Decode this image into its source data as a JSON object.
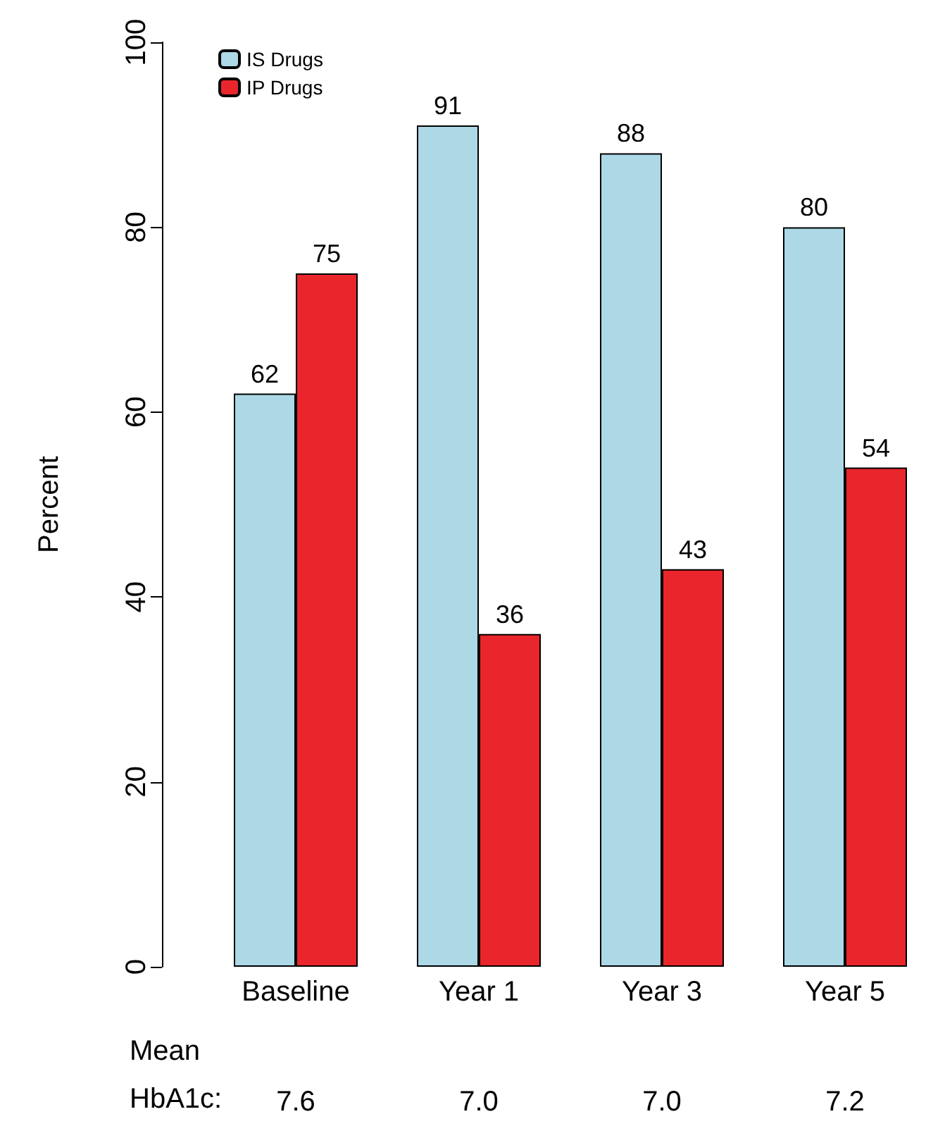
{
  "chart_data": {
    "type": "bar",
    "ylabel": "Percent",
    "categories": [
      "Baseline",
      "Year 1",
      "Year 3",
      "Year 5"
    ],
    "series": [
      {
        "name": "IS Drugs",
        "color": "#add8e6",
        "values": [
          62,
          91,
          88,
          80
        ]
      },
      {
        "name": "IP Drugs",
        "color": "#e8262b",
        "values": [
          75,
          36,
          43,
          54
        ]
      }
    ],
    "ylim": [
      0,
      100
    ],
    "yticks": [
      0,
      20,
      40,
      60,
      80,
      100
    ],
    "grid": false,
    "legend": "top left",
    "data_labels": true,
    "annotations": [
      "Mean",
      "HbA1c:",
      "7.6",
      "7.0",
      "7.0",
      "7.2"
    ]
  }
}
